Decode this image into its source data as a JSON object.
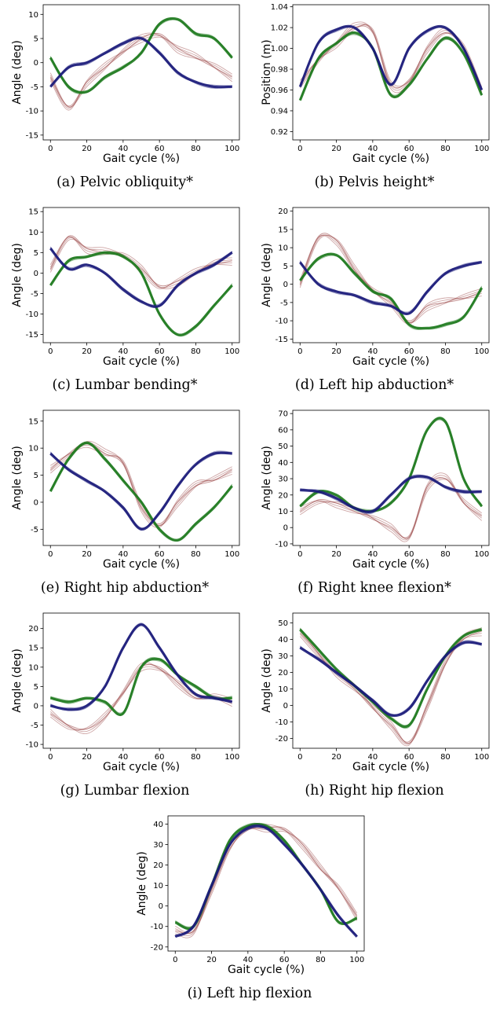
{
  "figure": {
    "colors": {
      "blue": "#1b1b7a",
      "green": "#1e7a1e",
      "red": "#a05050"
    },
    "panels": [
      {
        "caption": "(a) Pelvic obliquity*"
      },
      {
        "caption": "(b) Pelvis height*"
      },
      {
        "caption": "(c) Lumbar bending*"
      },
      {
        "caption": "(d) Left hip abduction*"
      },
      {
        "caption": "(e) Right hip abduction*"
      },
      {
        "caption": "(f) Right knee flexion*"
      },
      {
        "caption": "(g) Lumbar flexion"
      },
      {
        "caption": "(h) Right hip flexion"
      },
      {
        "caption": "(i) Left hip flexion"
      }
    ]
  },
  "chart_data": [
    {
      "type": "line",
      "xlabel": "Gait cycle (%)",
      "ylabel": "Angle (deg)",
      "xlim": [
        -4,
        104
      ],
      "ylim": [
        -16,
        12
      ],
      "xticks": [
        0,
        20,
        40,
        60,
        80,
        100
      ],
      "yticks": [
        -15,
        -10,
        -5,
        0,
        5,
        10
      ],
      "tick_decimals": 0,
      "x": [
        0,
        10,
        20,
        30,
        40,
        50,
        60,
        70,
        80,
        90,
        100
      ],
      "series": [
        {
          "color": "blue",
          "values": [
            -5,
            -1,
            0,
            2,
            4,
            5,
            2,
            -2,
            -4,
            -5,
            -5
          ]
        },
        {
          "color": "green",
          "values": [
            1,
            -5,
            -6,
            -3,
            -1,
            2,
            8,
            9,
            6,
            5,
            1
          ]
        },
        {
          "color": "red",
          "values": [
            -3,
            -9,
            -4,
            -1,
            2,
            5,
            6,
            3,
            1,
            -1,
            -3
          ]
        }
      ]
    },
    {
      "type": "line",
      "xlabel": "Gait cycle (%)",
      "ylabel": "Position (m)",
      "xlim": [
        -4,
        104
      ],
      "ylim": [
        0.912,
        1.042
      ],
      "xticks": [
        0,
        20,
        40,
        60,
        80,
        100
      ],
      "yticks": [
        0.92,
        0.94,
        0.96,
        0.98,
        1.0,
        1.02,
        1.04
      ],
      "tick_decimals": 2,
      "x": [
        0,
        10,
        20,
        30,
        40,
        50,
        60,
        70,
        80,
        90,
        100
      ],
      "series": [
        {
          "color": "blue",
          "values": [
            0.963,
            1.005,
            1.018,
            1.02,
            1.0,
            0.965,
            1.0,
            1.017,
            1.02,
            1.0,
            0.96
          ]
        },
        {
          "color": "green",
          "values": [
            0.95,
            0.99,
            1.005,
            1.015,
            1.0,
            0.955,
            0.965,
            0.99,
            1.01,
            0.995,
            0.955
          ]
        },
        {
          "color": "red",
          "values": [
            0.965,
            0.99,
            1.005,
            1.02,
            1.015,
            0.965,
            0.97,
            1.0,
            1.015,
            1.0,
            0.96
          ]
        }
      ]
    },
    {
      "type": "line",
      "xlabel": "Gait cycle (%)",
      "ylabel": "Angle (deg)",
      "xlim": [
        -4,
        104
      ],
      "ylim": [
        -17,
        16
      ],
      "xticks": [
        0,
        20,
        40,
        60,
        80,
        100
      ],
      "yticks": [
        -15,
        -10,
        -5,
        0,
        5,
        10,
        15
      ],
      "tick_decimals": 0,
      "x": [
        0,
        10,
        20,
        30,
        40,
        50,
        60,
        70,
        80,
        90,
        100
      ],
      "series": [
        {
          "color": "blue",
          "values": [
            6,
            1,
            2,
            0,
            -4,
            -7,
            -8,
            -3,
            0,
            2,
            5
          ]
        },
        {
          "color": "green",
          "values": [
            -3,
            3,
            4,
            5,
            4,
            0,
            -10,
            -15,
            -13,
            -8,
            -3
          ]
        },
        {
          "color": "red",
          "values": [
            1,
            9,
            6,
            5,
            4,
            1,
            -3,
            -2,
            0,
            2,
            3
          ]
        }
      ]
    },
    {
      "type": "line",
      "xlabel": "Gait cycle (%)",
      "ylabel": "Angle (deg)",
      "xlim": [
        -4,
        104
      ],
      "ylim": [
        -16,
        21
      ],
      "xticks": [
        0,
        20,
        40,
        60,
        80,
        100
      ],
      "yticks": [
        -15,
        -10,
        -5,
        0,
        5,
        10,
        15,
        20
      ],
      "tick_decimals": 0,
      "x": [
        0,
        10,
        20,
        30,
        40,
        50,
        60,
        70,
        80,
        90,
        100
      ],
      "series": [
        {
          "color": "blue",
          "values": [
            6,
            0,
            -2,
            -3,
            -5,
            -6,
            -8,
            -2,
            3,
            5,
            6
          ]
        },
        {
          "color": "green",
          "values": [
            1,
            7,
            8,
            3,
            -2,
            -4,
            -11,
            -12,
            -11,
            -9,
            -1
          ]
        },
        {
          "color": "red",
          "values": [
            0,
            13,
            12,
            4,
            -2,
            -5,
            -10,
            -6,
            -5,
            -4,
            -2
          ]
        }
      ]
    },
    {
      "type": "line",
      "xlabel": "Gait cycle (%)",
      "ylabel": "Angle (deg)",
      "xlim": [
        -4,
        104
      ],
      "ylim": [
        -8,
        17
      ],
      "xticks": [
        0,
        20,
        40,
        60,
        80,
        100
      ],
      "yticks": [
        -5,
        0,
        5,
        10,
        15
      ],
      "tick_decimals": 0,
      "x": [
        0,
        10,
        20,
        30,
        40,
        50,
        60,
        70,
        80,
        90,
        100
      ],
      "series": [
        {
          "color": "blue",
          "values": [
            9,
            6,
            4,
            2,
            -1,
            -5,
            -2,
            3,
            7,
            9,
            9
          ]
        },
        {
          "color": "green",
          "values": [
            2,
            8,
            11,
            8,
            4,
            0,
            -5,
            -7,
            -4,
            -1,
            3
          ]
        },
        {
          "color": "red",
          "values": [
            6,
            9,
            11,
            9,
            7,
            -1,
            -4,
            0,
            3,
            4,
            6
          ]
        }
      ]
    },
    {
      "type": "line",
      "xlabel": "Gait cycle (%)",
      "ylabel": "Angle (deg)",
      "xlim": [
        -4,
        104
      ],
      "ylim": [
        -11,
        72
      ],
      "xticks": [
        0,
        20,
        40,
        60,
        80,
        100
      ],
      "yticks": [
        -10,
        0,
        10,
        20,
        30,
        40,
        50,
        60,
        70
      ],
      "tick_decimals": 0,
      "x": [
        0,
        10,
        20,
        30,
        40,
        50,
        60,
        70,
        80,
        90,
        100
      ],
      "series": [
        {
          "color": "blue",
          "values": [
            23,
            22,
            18,
            12,
            10,
            20,
            30,
            31,
            25,
            22,
            22
          ]
        },
        {
          "color": "green",
          "values": [
            13,
            22,
            20,
            12,
            10,
            15,
            30,
            60,
            65,
            30,
            13
          ]
        },
        {
          "color": "red",
          "values": [
            10,
            17,
            15,
            10,
            5,
            0,
            -5,
            25,
            30,
            15,
            7
          ]
        }
      ]
    },
    {
      "type": "line",
      "xlabel": "Gait cycle (%)",
      "ylabel": "Angle (deg)",
      "xlim": [
        -4,
        104
      ],
      "ylim": [
        -11,
        24
      ],
      "xticks": [
        0,
        20,
        40,
        60,
        80,
        100
      ],
      "yticks": [
        -10,
        -5,
        0,
        5,
        10,
        15,
        20
      ],
      "tick_decimals": 0,
      "x": [
        0,
        10,
        20,
        30,
        40,
        50,
        60,
        70,
        80,
        90,
        100
      ],
      "series": [
        {
          "color": "blue",
          "values": [
            0,
            -1,
            0,
            5,
            15,
            21,
            15,
            8,
            3,
            2,
            1
          ]
        },
        {
          "color": "green",
          "values": [
            2,
            1,
            2,
            1,
            -2,
            10,
            12,
            8,
            5,
            2,
            2
          ]
        },
        {
          "color": "red",
          "values": [
            -2,
            -5,
            -6,
            -3,
            3,
            10,
            10,
            6,
            2,
            2,
            1
          ]
        }
      ]
    },
    {
      "type": "line",
      "xlabel": "Gait cycle (%)",
      "ylabel": "Angle (deg)",
      "xlim": [
        -4,
        104
      ],
      "ylim": [
        -26,
        56
      ],
      "xticks": [
        0,
        20,
        40,
        60,
        80,
        100
      ],
      "yticks": [
        -20,
        -10,
        0,
        10,
        20,
        30,
        40,
        50
      ],
      "tick_decimals": 0,
      "x": [
        0,
        10,
        20,
        30,
        40,
        50,
        60,
        70,
        80,
        90,
        100
      ],
      "series": [
        {
          "color": "blue",
          "values": [
            35,
            28,
            20,
            12,
            3,
            -6,
            -2,
            15,
            30,
            38,
            37
          ]
        },
        {
          "color": "green",
          "values": [
            46,
            34,
            22,
            12,
            2,
            -8,
            -12,
            10,
            30,
            42,
            46
          ]
        },
        {
          "color": "red",
          "values": [
            44,
            32,
            20,
            10,
            -2,
            -12,
            -22,
            0,
            25,
            40,
            45
          ]
        }
      ]
    },
    {
      "type": "line",
      "xlabel": "Gait cycle (%)",
      "ylabel": "Angle (deg)",
      "xlim": [
        -4,
        104
      ],
      "ylim": [
        -22,
        44
      ],
      "xticks": [
        0,
        20,
        40,
        60,
        80,
        100
      ],
      "yticks": [
        -20,
        -10,
        0,
        10,
        20,
        30,
        40
      ],
      "tick_decimals": 0,
      "x": [
        0,
        10,
        20,
        30,
        40,
        50,
        60,
        70,
        80,
        90,
        100
      ],
      "series": [
        {
          "color": "blue",
          "values": [
            -15,
            -10,
            10,
            30,
            38,
            38,
            30,
            20,
            8,
            -5,
            -15
          ]
        },
        {
          "color": "green",
          "values": [
            -8,
            -10,
            10,
            32,
            39,
            39,
            32,
            20,
            8,
            -8,
            -6
          ]
        },
        {
          "color": "red",
          "values": [
            -12,
            -12,
            8,
            28,
            37,
            38,
            38,
            30,
            18,
            8,
            -5
          ]
        }
      ]
    }
  ]
}
